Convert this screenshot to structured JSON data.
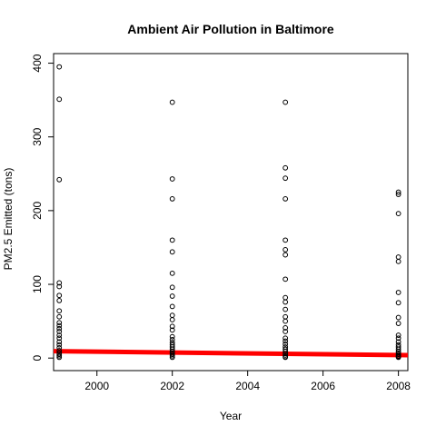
{
  "chart_data": {
    "type": "scatter",
    "title": "Ambient Air Pollution in Baltimore",
    "xlabel": "Year",
    "ylabel": "PM2.5 Emitted (tons)",
    "xlim": [
      1998.85,
      2008.25
    ],
    "ylim": [
      -17,
      413
    ],
    "x_ticks": [
      2000,
      2002,
      2004,
      2006,
      2008
    ],
    "y_ticks": [
      0,
      100,
      200,
      300,
      400
    ],
    "grid": false,
    "series": [
      {
        "type": "scatter",
        "marker": "open-circle",
        "color": "#000000",
        "points": [
          [
            1999,
            395
          ],
          [
            1999,
            351
          ],
          [
            1999,
            242
          ],
          [
            1999,
            102
          ],
          [
            1999,
            97
          ],
          [
            1999,
            85
          ],
          [
            1999,
            78
          ],
          [
            1999,
            64
          ],
          [
            1999,
            56
          ],
          [
            1999,
            48
          ],
          [
            1999,
            44
          ],
          [
            1999,
            40
          ],
          [
            1999,
            36
          ],
          [
            1999,
            31
          ],
          [
            1999,
            27
          ],
          [
            1999,
            22
          ],
          [
            1999,
            18
          ],
          [
            1999,
            14
          ],
          [
            1999,
            10
          ],
          [
            1999,
            7
          ],
          [
            1999,
            5
          ],
          [
            1999,
            3
          ],
          [
            1999,
            1
          ],
          [
            2002,
            347
          ],
          [
            2002,
            243
          ],
          [
            2002,
            216
          ],
          [
            2002,
            160
          ],
          [
            2002,
            144
          ],
          [
            2002,
            115
          ],
          [
            2002,
            96
          ],
          [
            2002,
            84
          ],
          [
            2002,
            70
          ],
          [
            2002,
            58
          ],
          [
            2002,
            52
          ],
          [
            2002,
            43
          ],
          [
            2002,
            38
          ],
          [
            2002,
            29
          ],
          [
            2002,
            25
          ],
          [
            2002,
            21
          ],
          [
            2002,
            18
          ],
          [
            2002,
            15
          ],
          [
            2002,
            12
          ],
          [
            2002,
            9
          ],
          [
            2002,
            7
          ],
          [
            2002,
            5
          ],
          [
            2002,
            3
          ],
          [
            2002,
            1
          ],
          [
            2005,
            347
          ],
          [
            2005,
            258
          ],
          [
            2005,
            244
          ],
          [
            2005,
            216
          ],
          [
            2005,
            160
          ],
          [
            2005,
            147
          ],
          [
            2005,
            140
          ],
          [
            2005,
            107
          ],
          [
            2005,
            82
          ],
          [
            2005,
            76
          ],
          [
            2005,
            66
          ],
          [
            2005,
            56
          ],
          [
            2005,
            50
          ],
          [
            2005,
            41
          ],
          [
            2005,
            36
          ],
          [
            2005,
            27
          ],
          [
            2005,
            23
          ],
          [
            2005,
            19
          ],
          [
            2005,
            15
          ],
          [
            2005,
            12
          ],
          [
            2005,
            9
          ],
          [
            2005,
            6
          ],
          [
            2005,
            4
          ],
          [
            2005,
            2
          ],
          [
            2005,
            1
          ],
          [
            2008,
            225
          ],
          [
            2008,
            222
          ],
          [
            2008,
            196
          ],
          [
            2008,
            137
          ],
          [
            2008,
            131
          ],
          [
            2008,
            89
          ],
          [
            2008,
            75
          ],
          [
            2008,
            55
          ],
          [
            2008,
            47
          ],
          [
            2008,
            31
          ],
          [
            2008,
            27
          ],
          [
            2008,
            22
          ],
          [
            2008,
            18
          ],
          [
            2008,
            15
          ],
          [
            2008,
            12
          ],
          [
            2008,
            9
          ],
          [
            2008,
            7
          ],
          [
            2008,
            5
          ],
          [
            2008,
            3
          ],
          [
            2008,
            2
          ],
          [
            2008,
            1
          ]
        ]
      },
      {
        "type": "line",
        "color": "#ff0000",
        "points": [
          [
            1998.85,
            9.3
          ],
          [
            2008.25,
            3.9
          ]
        ]
      }
    ]
  }
}
